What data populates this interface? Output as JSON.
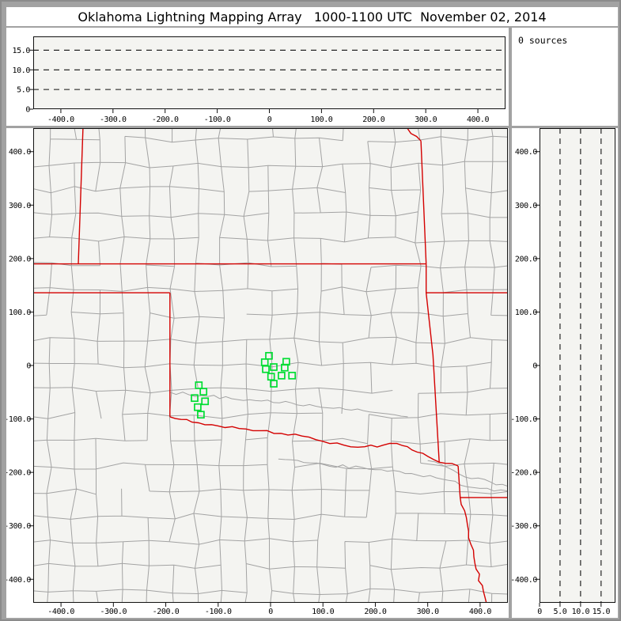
{
  "window": {
    "title": "Oklahoma Lightning Mapping Array   1000-1100 UTC  November 02, 2014"
  },
  "sources_panel": {
    "label": "0 sources"
  },
  "colors": {
    "window_bg": "#a2a2a2",
    "panel_bg": "#ffffff",
    "plot_bg": "#f4f4f1",
    "county_line": "#a3a3a3",
    "state_line": "#d40000",
    "station": "#00dd33",
    "dash_line": "#111111",
    "spine": "#111111",
    "tick_text": "#000000"
  },
  "axes": {
    "ew_km_ticks": [
      {
        "v": -400,
        "label": "-400.0"
      },
      {
        "v": -300,
        "label": "-300.0"
      },
      {
        "v": -200,
        "label": "-200.0"
      },
      {
        "v": -100,
        "label": "-100.0"
      },
      {
        "v": 0,
        "label": "0"
      },
      {
        "v": 100,
        "label": "100.0"
      },
      {
        "v": 200,
        "label": "200.0"
      },
      {
        "v": 300,
        "label": "300.0"
      },
      {
        "v": 400,
        "label": "400.0"
      }
    ],
    "ns_km_ticks": [
      {
        "v": 400,
        "label": "400.0"
      },
      {
        "v": 300,
        "label": "300.0"
      },
      {
        "v": 200,
        "label": "200.0"
      },
      {
        "v": 100,
        "label": "100.0"
      },
      {
        "v": 0,
        "label": "0"
      },
      {
        "v": -100,
        "label": "-100.0"
      },
      {
        "v": -200,
        "label": "-200.0"
      },
      {
        "v": -300,
        "label": "-300.0"
      },
      {
        "v": -400,
        "label": "-400.0"
      }
    ],
    "alt_ticks_desc": [
      {
        "v": 15,
        "label": "15.0"
      },
      {
        "v": 10,
        "label": "10.0"
      },
      {
        "v": 5,
        "label": "5.0"
      },
      {
        "v": 0,
        "label": "0"
      }
    ],
    "alt_ticks_asc": [
      {
        "v": 0,
        "label": "0"
      },
      {
        "v": 5,
        "label": "5.0"
      },
      {
        "v": 10,
        "label": "10.0"
      },
      {
        "v": 15,
        "label": "15.0"
      }
    ],
    "alt_dash_values": [
      5,
      10,
      15
    ],
    "km_range": {
      "x": [
        -453,
        453
      ],
      "y": [
        -444,
        444
      ]
    },
    "alt_range": [
      0,
      18.5
    ]
  },
  "map_data": {
    "stations_km": [
      [
        -3,
        18
      ],
      [
        -11,
        6
      ],
      [
        30,
        7
      ],
      [
        -9,
        -7
      ],
      [
        6,
        -3
      ],
      [
        27,
        -4
      ],
      [
        1,
        -21
      ],
      [
        21,
        -19
      ],
      [
        41,
        -19
      ],
      [
        6,
        -34
      ],
      [
        -137,
        -37
      ],
      [
        -128,
        -49
      ],
      [
        -145,
        -61
      ],
      [
        -125,
        -67
      ],
      [
        -139,
        -78
      ],
      [
        -133,
        -92
      ]
    ],
    "state_borders": [
      {
        "name": "colorado-kansas",
        "wiggle": false,
        "pts": [
          [
            -358,
            444
          ],
          [
            -367,
            190
          ]
        ]
      },
      {
        "name": "kansas-oklahoma-37n",
        "wiggle": false,
        "pts": [
          [
            -453,
            190
          ],
          [
            297,
            190
          ]
        ]
      },
      {
        "name": "panhandle-south-36-5n",
        "wiggle": false,
        "pts": [
          [
            -453,
            136
          ],
          [
            -192,
            136
          ]
        ]
      },
      {
        "name": "texas-oklahoma-100w",
        "wiggle": false,
        "pts": [
          [
            -192,
            136
          ],
          [
            -192,
            -96
          ]
        ]
      },
      {
        "name": "red-river",
        "wiggle": true,
        "pts": [
          [
            -192,
            -96
          ],
          [
            -150,
            -106
          ],
          [
            -100,
            -113
          ],
          [
            -60,
            -118
          ],
          [
            -20,
            -122
          ],
          [
            20,
            -127
          ],
          [
            60,
            -132
          ],
          [
            100,
            -142
          ],
          [
            140,
            -149
          ],
          [
            180,
            -152
          ],
          [
            215,
            -149
          ],
          [
            241,
            -146
          ],
          [
            270,
            -158
          ],
          [
            300,
            -170
          ],
          [
            322,
            -181
          ],
          [
            358,
            -188
          ]
        ]
      },
      {
        "name": "kansas-missouri-river",
        "wiggle": true,
        "pts": [
          [
            261,
            444
          ],
          [
            287,
            420
          ]
        ]
      },
      {
        "name": "missouri-oklahoma-arkansas-west",
        "wiggle": false,
        "pts": [
          [
            287,
            420
          ],
          [
            297,
            190
          ],
          [
            297,
            136
          ],
          [
            310,
            20
          ],
          [
            322,
            -181
          ]
        ]
      },
      {
        "name": "missouri-arkansas-36-5n",
        "wiggle": false,
        "pts": [
          [
            297,
            136
          ],
          [
            453,
            136
          ]
        ]
      },
      {
        "name": "texas-arkansas",
        "wiggle": false,
        "pts": [
          [
            358,
            -188
          ],
          [
            362,
            -247
          ]
        ]
      },
      {
        "name": "arkansas-louisiana",
        "wiggle": false,
        "pts": [
          [
            362,
            -247
          ],
          [
            453,
            -247
          ]
        ]
      },
      {
        "name": "texas-louisiana",
        "wiggle": true,
        "pts": [
          [
            362,
            -247
          ],
          [
            378,
            -310
          ],
          [
            390,
            -370
          ],
          [
            412,
            -444
          ]
        ]
      }
    ],
    "rivers": [
      {
        "name": "canadian-river",
        "pts": [
          [
            -192,
            -50
          ],
          [
            -120,
            -58
          ],
          [
            -40,
            -64
          ],
          [
            40,
            -70
          ],
          [
            120,
            -80
          ],
          [
            200,
            -88
          ],
          [
            262,
            -96
          ]
        ]
      },
      {
        "name": "arkansas-river",
        "pts": [
          [
            300,
            -178
          ],
          [
            360,
            -203
          ],
          [
            420,
            -218
          ],
          [
            453,
            -226
          ]
        ]
      },
      {
        "name": "sulphur-river",
        "pts": [
          [
            15,
            -175
          ],
          [
            100,
            -185
          ],
          [
            200,
            -195
          ],
          [
            280,
            -205
          ],
          [
            340,
            -215
          ],
          [
            400,
            -230
          ],
          [
            453,
            -235
          ]
        ]
      }
    ],
    "county_grid": {
      "spacing_km": 47,
      "jitter_km": 6,
      "skip": 0.13,
      "seed": 7
    }
  }
}
